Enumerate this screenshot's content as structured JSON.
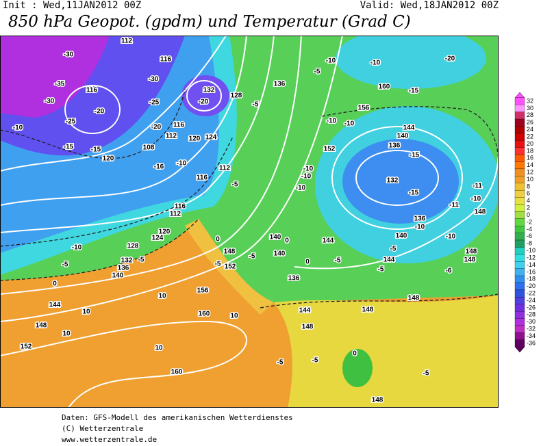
{
  "header": {
    "init": "Init : Wed,11JAN2012 00Z",
    "valid": "Valid: Wed,18JAN2012 00Z",
    "title": "850 hPa Geopot. (gpdm) und Temperatur (Grad C)"
  },
  "map": {
    "labels": [
      "112",
      "116",
      "-30",
      "-35",
      "-30",
      "116",
      "-20",
      "-25",
      "-10",
      "-15",
      "-15",
      "120",
      "-30",
      "-25",
      "-20",
      "116",
      "108",
      "112",
      "120",
      "124",
      "-16",
      "-10",
      "132",
      "-20",
      "128",
      "116",
      "112",
      "-5",
      "136",
      "-5",
      "-5",
      "-10",
      "-10",
      "160",
      "-15",
      "-20",
      "156",
      "-10",
      "-10",
      "144",
      "140",
      "136",
      "-15",
      "152",
      "132",
      "-15",
      "-10",
      "-10",
      "-10",
      "136",
      "-10",
      "140",
      "-10",
      "144",
      "140",
      "0",
      "140",
      "0",
      "-5",
      "-5",
      "144",
      "-5",
      "-6",
      "148",
      "148",
      "-11",
      "-10",
      "148",
      "-11",
      "116",
      "112",
      "120",
      "124",
      "128",
      "-10",
      "-5",
      "132",
      "136",
      "140",
      "-5",
      "0",
      "144",
      "10",
      "148",
      "10",
      "152",
      "10",
      "156",
      "160",
      "10",
      "10",
      "160",
      "148",
      "-5",
      "152",
      "0",
      "-5",
      "136",
      "144",
      "148",
      "148",
      "148",
      "0",
      "-5",
      "-5",
      "148",
      "-5"
    ]
  },
  "colorbar": {
    "levels": [
      32,
      30,
      28,
      26,
      24,
      22,
      20,
      18,
      16,
      14,
      12,
      10,
      8,
      6,
      4,
      2,
      0,
      -2,
      -4,
      -6,
      -8,
      -10,
      -12,
      -14,
      -16,
      -18,
      -20,
      -22,
      -24,
      -26,
      -28,
      -30,
      -32,
      -34,
      -36
    ],
    "colors": [
      "#ff50ff",
      "#ff96ff",
      "#d0306a",
      "#a00020",
      "#b00000",
      "#d00000",
      "#e81010",
      "#ff3030",
      "#ff5a00",
      "#ff7800",
      "#f09020",
      "#f0a028",
      "#f0c030",
      "#f0d040",
      "#e8e040",
      "#d0f040",
      "#a0e040",
      "#60d840",
      "#40c840",
      "#30b050",
      "#20a060",
      "#20d0c0",
      "#30e0e0",
      "#40d0f0",
      "#40b0f0",
      "#3090f0",
      "#3070f0",
      "#3050e0",
      "#5040e0",
      "#7030e0",
      "#9030e0",
      "#b030e0",
      "#c030c0",
      "#901090",
      "#600060"
    ]
  },
  "footer": {
    "line1": "Daten: GFS-Modell des amerikanischen Wetterdienstes",
    "line2": "(C) Wetterzentrale",
    "line3": "www.wetterzentrale.de"
  }
}
